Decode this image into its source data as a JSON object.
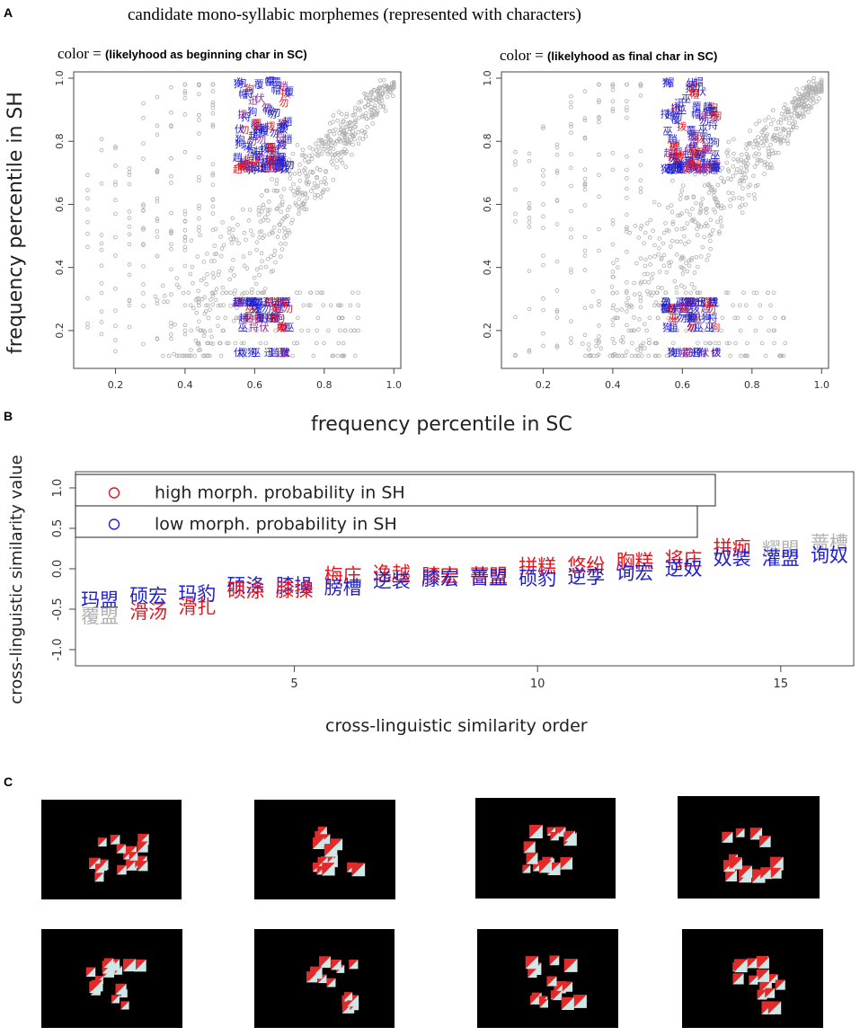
{
  "panel_labels": {
    "a": "A",
    "b": "B",
    "c": "C"
  },
  "figure_title": "candidate mono-syllabic morphemes (represented with characters)",
  "colors": {
    "high": "#e8141c",
    "low": "#2020d0",
    "gray": "#b0b0b0",
    "mixed": "#8a2a9a",
    "axis": "#444444"
  },
  "shared_xlabel": "frequency percentile in SC",
  "shared_ylabel": "frequency percentile in SH",
  "chart_data": [
    {
      "type": "scatter",
      "id": "scatter-left",
      "title_prefix": "color =",
      "title_bold": "(likelyhood as beginning char in SC)",
      "xlim": [
        0.1,
        1.0
      ],
      "ylim": [
        0.1,
        1.0
      ],
      "xticks": [
        0.2,
        0.4,
        0.6,
        0.8,
        1.0
      ],
      "xtick_labels": [
        "0.2",
        "0.4",
        "0.6",
        "0.8",
        "1.0"
      ],
      "yticks": [
        0.2,
        0.4,
        0.6,
        0.8,
        1.0
      ],
      "ytick_labels": [
        "0.2",
        "0.4",
        "0.6",
        "0.8",
        "1.0"
      ],
      "background_series": "gray circles: all characters, dense along diagonal, discrete columns at low SC",
      "highlighted_clusters": [
        {
          "x_range": [
            0.55,
            0.7
          ],
          "y_range": [
            0.7,
            0.98
          ],
          "label": "high SH cluster"
        },
        {
          "x_range": [
            0.55,
            0.7
          ],
          "y_range": [
            0.1,
            0.3
          ],
          "label": "low SH cluster"
        }
      ],
      "sample_chars": [
        "勿",
        "拨",
        "覆",
        "趙",
        "巫",
        "迅",
        "帽",
        "伏",
        "捋",
        "狗"
      ]
    },
    {
      "type": "scatter",
      "id": "scatter-right",
      "title_prefix": "color =",
      "title_bold": "(likelyhood as final char in SC)",
      "xlim": [
        0.1,
        1.0
      ],
      "ylim": [
        0.1,
        1.0
      ],
      "xticks": [
        0.2,
        0.4,
        0.6,
        0.8,
        1.0
      ],
      "xtick_labels": [
        "0.2",
        "0.4",
        "0.6",
        "0.8",
        "1.0"
      ],
      "yticks": [
        0.2,
        0.4,
        0.6,
        0.8,
        1.0
      ],
      "ytick_labels": [
        "0.2",
        "0.4",
        "0.6",
        "0.8",
        "1.0"
      ],
      "highlighted_clusters": [
        {
          "x_range": [
            0.55,
            0.7
          ],
          "y_range": [
            0.7,
            0.98
          ],
          "label": "high SH cluster"
        },
        {
          "x_range": [
            0.55,
            0.7
          ],
          "y_range": [
            0.1,
            0.3
          ],
          "label": "low SH cluster"
        }
      ],
      "sample_chars": [
        "勿",
        "拨",
        "覆",
        "趙",
        "巫",
        "迅",
        "帽",
        "伏",
        "捋",
        "狗"
      ]
    },
    {
      "type": "scatter",
      "id": "similarity-order",
      "title": "",
      "xlabel": "cross-linguistic similarity order",
      "ylabel": "cross-linguistic similarity value",
      "xlim": [
        0.5,
        16.5
      ],
      "ylim": [
        -1.2,
        1.2
      ],
      "xticks": [
        5,
        10,
        15
      ],
      "xtick_labels": [
        "5",
        "10",
        "15"
      ],
      "yticks": [
        -1.0,
        -0.5,
        0.0,
        0.5,
        1.0
      ],
      "ytick_labels": [
        "-1.0",
        "-0.5",
        "0.0",
        "0.5",
        "1.0"
      ],
      "legend": [
        {
          "label": "high morph. probability in SH",
          "color": "high"
        },
        {
          "label": "low morph. probability in SH",
          "color": "low"
        }
      ],
      "legend_position": "top-left",
      "labels": [
        {
          "x": 1,
          "y": -0.38,
          "text": "玛盟",
          "color": "low"
        },
        {
          "x": 1,
          "y": -0.58,
          "text": "覆盟",
          "color": "gray"
        },
        {
          "x": 2,
          "y": -0.33,
          "text": "硕宏",
          "color": "low"
        },
        {
          "x": 2,
          "y": -0.52,
          "text": "滑汤",
          "color": "high"
        },
        {
          "x": 3,
          "y": -0.3,
          "text": "玛豹",
          "color": "low"
        },
        {
          "x": 3,
          "y": -0.46,
          "text": "滑扎",
          "color": "high"
        },
        {
          "x": 4,
          "y": -0.2,
          "text": "硕涤",
          "color": "low"
        },
        {
          "x": 4,
          "y": -0.26,
          "text": "硕涤",
          "color": "high"
        },
        {
          "x": 5,
          "y": -0.2,
          "text": "膝操",
          "color": "low"
        },
        {
          "x": 5,
          "y": -0.25,
          "text": "膝操",
          "color": "high"
        },
        {
          "x": 6,
          "y": -0.07,
          "text": "梅庄",
          "color": "high"
        },
        {
          "x": 6,
          "y": -0.22,
          "text": "膀槽",
          "color": "low"
        },
        {
          "x": 7,
          "y": -0.05,
          "text": "逸越",
          "color": "high"
        },
        {
          "x": 7,
          "y": -0.14,
          "text": "逆装",
          "color": "low"
        },
        {
          "x": 8,
          "y": -0.08,
          "text": "膝宏",
          "color": "high"
        },
        {
          "x": 8,
          "y": -0.11,
          "text": "膝宏",
          "color": "low"
        },
        {
          "x": 9,
          "y": -0.08,
          "text": "蔷盟",
          "color": "high"
        },
        {
          "x": 9,
          "y": -0.1,
          "text": "蔷盟",
          "color": "low"
        },
        {
          "x": 10,
          "y": 0.04,
          "text": "拼糕",
          "color": "high"
        },
        {
          "x": 10,
          "y": -0.11,
          "text": "硕豹",
          "color": "low"
        },
        {
          "x": 11,
          "y": 0.05,
          "text": "悠纷",
          "color": "high"
        },
        {
          "x": 11,
          "y": -0.09,
          "text": "逆孪",
          "color": "low"
        },
        {
          "x": 12,
          "y": 0.1,
          "text": "胸糕",
          "color": "high"
        },
        {
          "x": 12,
          "y": -0.04,
          "text": "询宏",
          "color": "low"
        },
        {
          "x": 13,
          "y": 0.13,
          "text": "将庄",
          "color": "high"
        },
        {
          "x": 13,
          "y": 0.01,
          "text": "逆奴",
          "color": "low"
        },
        {
          "x": 14,
          "y": 0.27,
          "text": "拼痂",
          "color": "high"
        },
        {
          "x": 14,
          "y": 0.14,
          "text": "奴装",
          "color": "low"
        },
        {
          "x": 15,
          "y": 0.25,
          "text": "耀盟",
          "color": "gray"
        },
        {
          "x": 15,
          "y": 0.14,
          "text": "灌盟",
          "color": "low"
        },
        {
          "x": 16,
          "y": 0.33,
          "text": "蔷槽",
          "color": "gray"
        },
        {
          "x": 16,
          "y": 0.18,
          "text": "询奴",
          "color": "low"
        }
      ]
    }
  ],
  "photos": {
    "caption": "",
    "items": [
      {
        "name": "snake-puzzle-1"
      },
      {
        "name": "snake-puzzle-2"
      },
      {
        "name": "snake-puzzle-3"
      },
      {
        "name": "snake-puzzle-4"
      },
      {
        "name": "snake-puzzle-5"
      },
      {
        "name": "snake-puzzle-6"
      },
      {
        "name": "snake-puzzle-7"
      },
      {
        "name": "snake-puzzle-8"
      }
    ]
  }
}
